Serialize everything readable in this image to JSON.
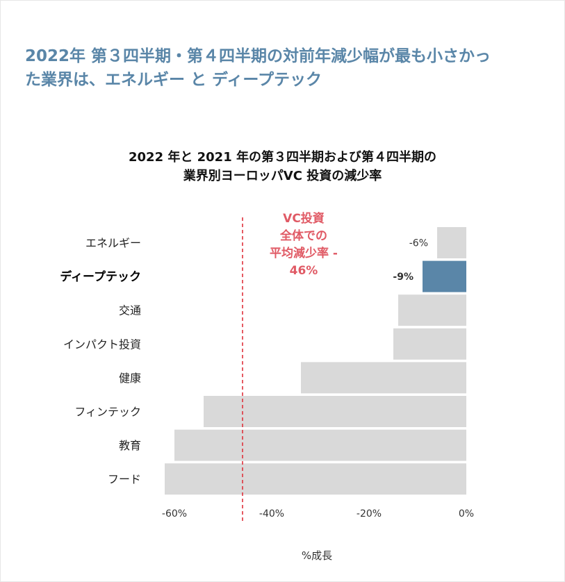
{
  "headline": {
    "line1": "2022年 第３四半期・第４四半期の対前年減少幅が最も小さかっ",
    "line2": "た業界は、エネルギー と ディープテック"
  },
  "chart_data": {
    "type": "bar",
    "orientation": "horizontal",
    "title_lines": [
      "2022 年と 2021 年の第３四半期および第４四半期の",
      "業界別ヨーロッパVC 投資の減少率"
    ],
    "categories": [
      "エネルギー",
      "ディープテック",
      "交通",
      "インパクト投資",
      "健康",
      "フィンテック",
      "教育",
      "フード"
    ],
    "values": [
      -6,
      -9,
      -14,
      -15,
      -34,
      -54,
      -60,
      -62
    ],
    "data_labels": [
      "-6%",
      "-9%",
      "",
      "",
      "",
      "",
      "",
      ""
    ],
    "highlight_index": 1,
    "xlabel": "%成長",
    "xlim": [
      -62,
      0
    ],
    "xticks": [
      {
        "value": -60,
        "label": "-60%"
      },
      {
        "value": -40,
        "label": "-40%"
      },
      {
        "value": -20,
        "label": "-20%"
      },
      {
        "value": 0,
        "label": "0%"
      }
    ],
    "reference_line": {
      "value": -46,
      "label_lines": [
        "VC投資",
        "全体での",
        "平均減少率 -",
        "46%"
      ]
    },
    "colors": {
      "bar": "#d9d9d9",
      "highlight": "#5a86a8",
      "reference": "#e0323c",
      "annotation": "#e05a65"
    }
  }
}
